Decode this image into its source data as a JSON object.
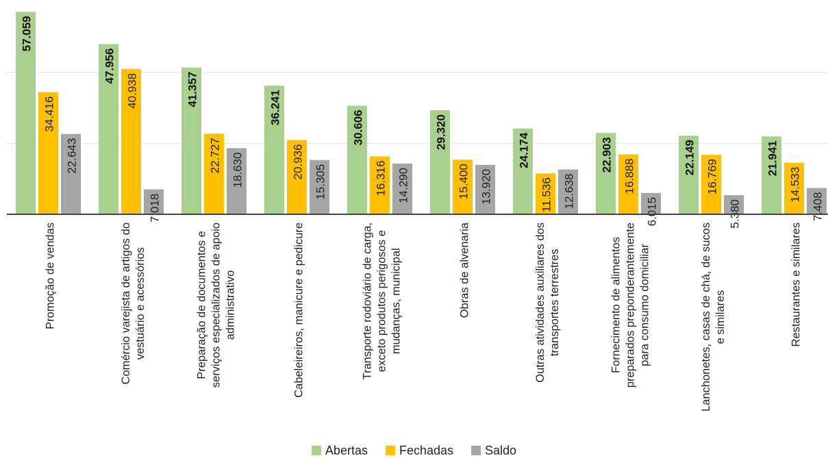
{
  "chart_data": {
    "type": "bar",
    "categories": [
      "Promoção de vendas",
      "Comércio varejista de artigos do vestuário e acessórios",
      "Preparação de documentos e serviços especializados de apoio administrativo",
      "Cabeleireiros, manicure e pedicure",
      "Transporte rodoviário de carga, exceto produtos perigosos e mudanças, municipal",
      "Obras de alvenaria",
      "Outras atividades auxiliares dos transportes terrestres",
      "Fornecimento de alimentos preparados preponderantemente para consumo domiciliar",
      "Lanchonetes, casas de chá, de sucos e similares",
      "Restaurantes e similares"
    ],
    "category_lines": [
      [
        "Promoção de vendas"
      ],
      [
        "Comércio varejista de artigos do",
        "vestuário e acessórios"
      ],
      [
        "Preparação de documentos e",
        "serviços especializados de apoio",
        "administrativo"
      ],
      [
        "Cabeleireiros, manicure e pedicure"
      ],
      [
        "Transporte rodoviário de carga,",
        "exceto produtos perigosos e",
        "mudanças, municipal"
      ],
      [
        "Obras de alvenaria"
      ],
      [
        "Outras atividades auxiliares dos",
        "transportes terrestres"
      ],
      [
        "Fornecimento de alimentos",
        "preparados preponderantemente",
        "para consumo domiciliar"
      ],
      [
        "Lanchonetes, casas de chá, de sucos",
        "e similares"
      ],
      [
        "Restaurantes e similares"
      ]
    ],
    "series": [
      {
        "name": "Abertas",
        "color": "#a9d18e",
        "values": [
          57059,
          47956,
          41357,
          36241,
          30606,
          29320,
          24174,
          22903,
          22149,
          21941
        ],
        "labels": [
          "57.059",
          "47.956",
          "41.357",
          "36.241",
          "30.606",
          "29.320",
          "24.174",
          "22.903",
          "22.149",
          "21.941"
        ]
      },
      {
        "name": "Fechadas",
        "color": "#ffc000",
        "values": [
          34416,
          40938,
          22727,
          20936,
          16316,
          15400,
          11536,
          16888,
          16769,
          14533
        ],
        "labels": [
          "34.416",
          "40.938",
          "22.727",
          "20.936",
          "16.316",
          "15.400",
          "11.536",
          "16.888",
          "16.769",
          "14.533"
        ]
      },
      {
        "name": "Saldo",
        "color": "#a5a5a5",
        "values": [
          22643,
          7018,
          18630,
          15305,
          14290,
          13920,
          12638,
          6015,
          5380,
          7408
        ],
        "labels": [
          "22.643",
          "7.018",
          "18.630",
          "15.305",
          "14.290",
          "13.920",
          "12.638",
          "6.015",
          "5.380",
          "7.408"
        ]
      }
    ],
    "ylim": [
      0,
      60000
    ],
    "gridlines": [
      20000,
      40000
    ],
    "grid": true,
    "legend": "bottom",
    "title": "",
    "xlabel": "",
    "ylabel": ""
  }
}
